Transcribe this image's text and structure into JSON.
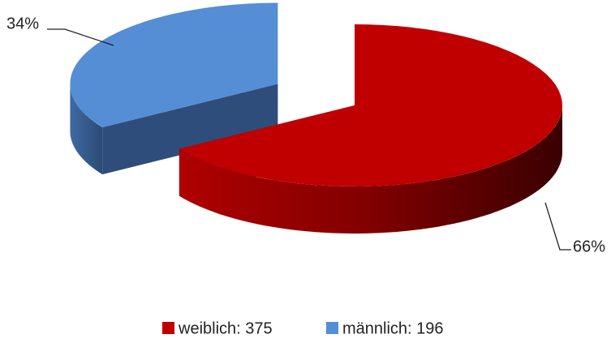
{
  "chart_data": {
    "type": "pie",
    "categories": [
      "weiblich: 375",
      "männlich: 196"
    ],
    "values": [
      66,
      34
    ],
    "value_labels": [
      "66%",
      "34%"
    ],
    "colors": [
      "#c00000",
      "#558ed5"
    ],
    "legend": "bottom"
  }
}
